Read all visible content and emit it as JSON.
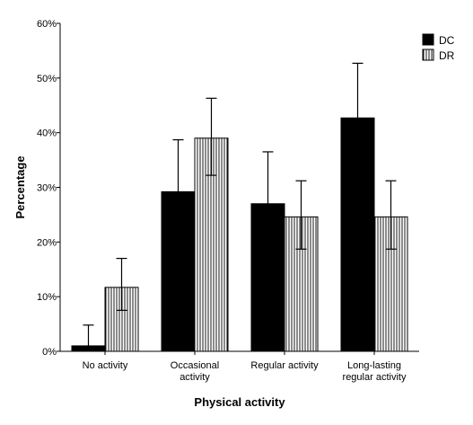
{
  "chart_data": {
    "type": "bar",
    "title": "",
    "xlabel": "Physical activity",
    "ylabel": "Percentage",
    "ylim": [
      0,
      60
    ],
    "yticks": [
      "0%",
      "10%",
      "20%",
      "30%",
      "40%",
      "50%",
      "60%"
    ],
    "categories": [
      [
        "No activity"
      ],
      [
        "Occasional",
        "activity"
      ],
      [
        "Regular activity"
      ],
      [
        "Long-lasting",
        "regular activity"
      ]
    ],
    "series": [
      {
        "name": "DC",
        "pattern": "solid",
        "color": "#000000",
        "values": [
          1.0,
          29.2,
          27.0,
          42.7
        ],
        "err_upper": [
          4.8,
          38.7,
          36.5,
          52.7
        ],
        "err_lower": [
          null,
          null,
          null,
          null
        ]
      },
      {
        "name": "DR",
        "pattern": "vertical-stripes",
        "color": "#ffffff",
        "values": [
          11.7,
          39.0,
          24.6,
          24.6
        ],
        "err_upper": [
          17.0,
          46.3,
          31.2,
          31.2
        ],
        "err_lower": [
          7.5,
          32.2,
          18.7,
          18.7
        ]
      }
    ],
    "grid": false,
    "legend": "top-right"
  }
}
